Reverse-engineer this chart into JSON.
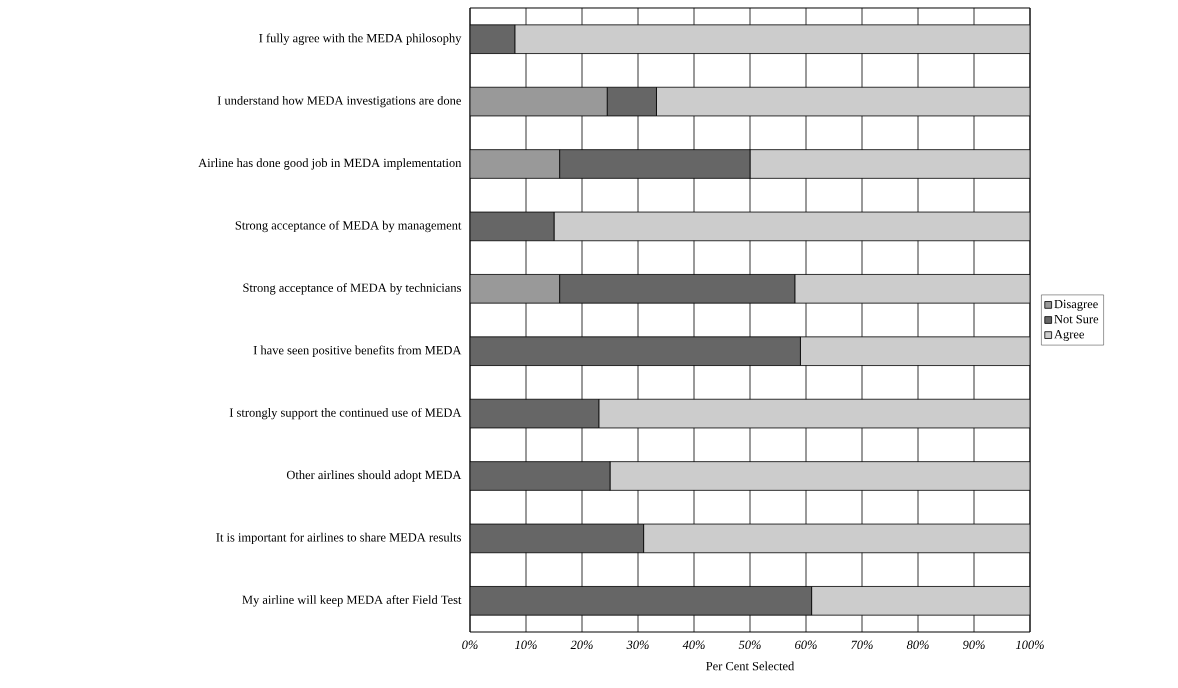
{
  "chart_data": {
    "type": "bar",
    "orientation": "horizontal",
    "stacked": true,
    "categories": [
      "I fully agree with the MEDA philosophy",
      "I understand how MEDA investigations are done",
      "Airline has done good job in MEDA implementation",
      "Strong acceptance of MEDA by management",
      "Strong acceptance of MEDA by technicians",
      "I have seen positive benefits from MEDA",
      "I strongly support the continued use of MEDA",
      "Other airlines should adopt MEDA",
      "It is important for airlines to share MEDA results",
      "My airline will keep MEDA after Field Test"
    ],
    "series": [
      {
        "name": "Disagree",
        "color": "#999999",
        "values": [
          0,
          24.5,
          16,
          0,
          16,
          0,
          0,
          0,
          0,
          0
        ]
      },
      {
        "name": "Not Sure",
        "color": "#666666",
        "values": [
          8,
          8.8,
          34,
          15,
          42,
          59,
          23,
          25,
          31,
          61
        ]
      },
      {
        "name": "Agree",
        "color": "#cccccc",
        "values": [
          92,
          66.7,
          50,
          85,
          42,
          41,
          77,
          75,
          69,
          39
        ]
      }
    ],
    "xlabel": "Per Cent Selected",
    "xlim": [
      0,
      100
    ],
    "xticks": [
      {
        "value": 0,
        "label": "0%"
      },
      {
        "value": 10,
        "label": "10%"
      },
      {
        "value": 20,
        "label": "20%"
      },
      {
        "value": 30,
        "label": "30%"
      },
      {
        "value": 40,
        "label": "40%"
      },
      {
        "value": 50,
        "label": "50%"
      },
      {
        "value": 60,
        "label": "60%"
      },
      {
        "value": 70,
        "label": "70%"
      },
      {
        "value": 80,
        "label": "80%"
      },
      {
        "value": 90,
        "label": "90%"
      },
      {
        "value": 100,
        "label": "100%"
      }
    ],
    "grid": "x",
    "legend": "right"
  }
}
